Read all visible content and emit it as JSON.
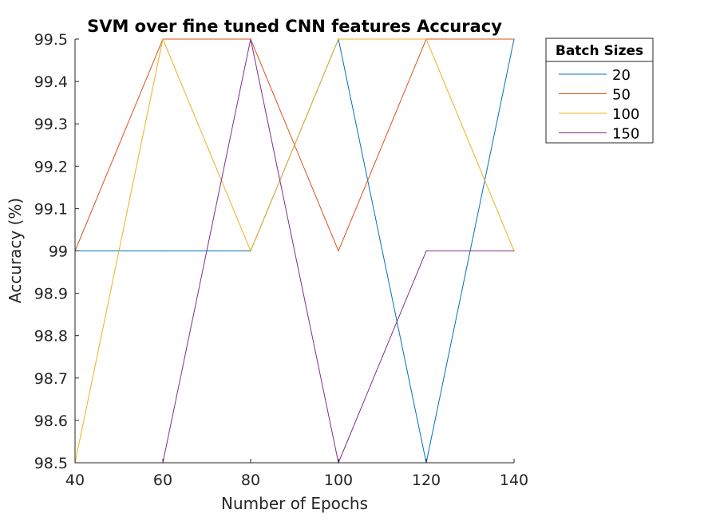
{
  "chart_data": {
    "type": "line",
    "title": "SVM over fine tuned CNN features Accuracy",
    "xlabel": "Number of Epochs",
    "ylabel": "Accuracy (%)",
    "x": [
      40,
      60,
      80,
      100,
      120,
      140
    ],
    "xlim": [
      40,
      140
    ],
    "ylim": [
      98.5,
      99.5
    ],
    "xticks": [
      "40",
      "60",
      "80",
      "100",
      "120",
      "140"
    ],
    "yticks": [
      "98.5",
      "98.6",
      "98.7",
      "98.8",
      "98.9",
      "99",
      "99.1",
      "99.2",
      "99.3",
      "99.4",
      "99.5"
    ],
    "grid": false,
    "legend_title": "Batch Sizes",
    "legend_position": "outside-top-right",
    "series": [
      {
        "name": "20",
        "color": "#0072BD",
        "values": [
          99.0,
          99.0,
          99.0,
          99.5,
          98.5,
          99.5
        ]
      },
      {
        "name": "50",
        "color": "#D95319",
        "values": [
          99.0,
          99.5,
          99.5,
          99.0,
          99.5,
          99.5
        ]
      },
      {
        "name": "100",
        "color": "#EDB120",
        "values": [
          98.5,
          99.5,
          99.0,
          99.5,
          99.5,
          99.0
        ]
      },
      {
        "name": "150",
        "color": "#7E2F8E",
        "values": [
          98.5,
          98.5,
          99.5,
          98.5,
          99.0,
          99.0
        ]
      }
    ]
  }
}
